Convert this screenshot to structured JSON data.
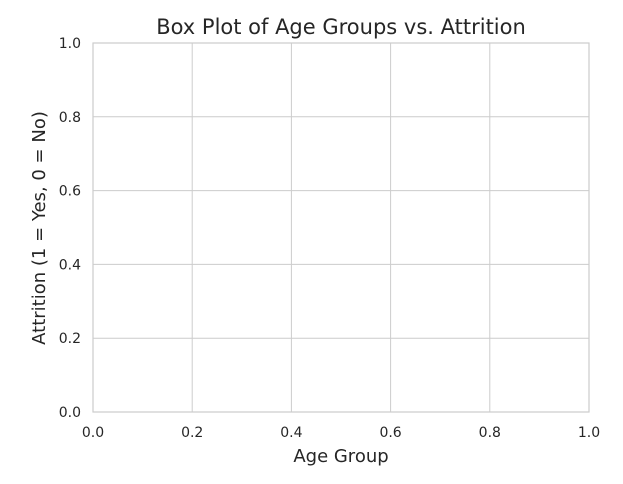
{
  "chart_data": {
    "type": "box",
    "title": "Box Plot of Age Groups vs. Attrition",
    "xlabel": "Age Group",
    "ylabel": "Attrition (1 = Yes, 0 = No)",
    "xlim": [
      0.0,
      1.0
    ],
    "ylim": [
      0.0,
      1.0
    ],
    "x_ticks": [
      "0.0",
      "0.2",
      "0.4",
      "0.6",
      "0.8",
      "1.0"
    ],
    "y_ticks": [
      "0.0",
      "0.2",
      "0.4",
      "0.6",
      "0.8",
      "1.0"
    ],
    "grid": true,
    "series": [],
    "colors": {
      "background": "#ffffff",
      "grid": "#cccccc",
      "spine": "#cccccc",
      "text": "#262626"
    }
  }
}
